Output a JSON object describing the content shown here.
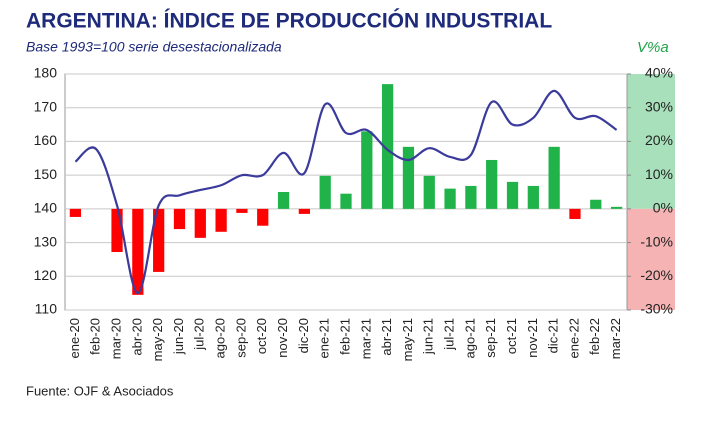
{
  "chart_data": {
    "type": "bar-line",
    "title": "ARGENTINA: ÍNDICE DE PRODUCCIÓN INDUSTRIAL",
    "subtitle": "Base 1993=100 serie desestacionalizada",
    "y2_label": "V%a",
    "source": "Fuente: OJF & Asociados",
    "categories": [
      "ene-20",
      "feb-20",
      "mar-20",
      "abr-20",
      "may-20",
      "jun-20",
      "jul-20",
      "ago-20",
      "sep-20",
      "oct-20",
      "nov-20",
      "dic-20",
      "ene-21",
      "feb-21",
      "mar-21",
      "abr-21",
      "may-21",
      "jun-21",
      "jul-21",
      "ago-21",
      "sep-21",
      "oct-21",
      "nov-21",
      "dic-21",
      "ene-22",
      "feb-22",
      "mar-22"
    ],
    "series": [
      {
        "kind": "line",
        "color": "#3b3b9c",
        "axis": "y",
        "values": [
          154,
          157.7,
          141,
          115,
          141,
          144,
          145.6,
          147,
          150,
          150,
          156.6,
          150.6,
          171,
          162.5,
          163.4,
          157.5,
          154.5,
          158,
          155.4,
          156,
          171.7,
          165,
          167,
          175,
          167,
          167.5,
          163.4
        ]
      },
      {
        "kind": "bar",
        "color": "#1fb34a",
        "negative_color": "#ff0000",
        "axis": "y2",
        "values": [
          -2.4,
          0,
          -12.8,
          -25.5,
          -18.7,
          -6,
          -8.6,
          -6.8,
          -1.2,
          -5,
          5,
          -1.5,
          9.8,
          4.5,
          23,
          37,
          18.4,
          9.8,
          6,
          6.8,
          14.5,
          8,
          6.8,
          18.4,
          -3,
          2.7,
          0.6
        ]
      }
    ],
    "ylim": [
      110,
      180
    ],
    "yticks": [
      110,
      120,
      130,
      140,
      150,
      160,
      170,
      180
    ],
    "y2lim": [
      -30,
      40
    ],
    "y2ticks": [
      {
        "value": -30,
        "label": "-30%"
      },
      {
        "value": -20,
        "label": "-20%"
      },
      {
        "value": -10,
        "label": "-10%"
      },
      {
        "value": 0,
        "label": "0%"
      },
      {
        "value": 10,
        "label": "10%"
      },
      {
        "value": 20,
        "label": "20%"
      },
      {
        "value": 30,
        "label": "30%"
      },
      {
        "value": 40,
        "label": "40%"
      }
    ],
    "grid": true
  }
}
